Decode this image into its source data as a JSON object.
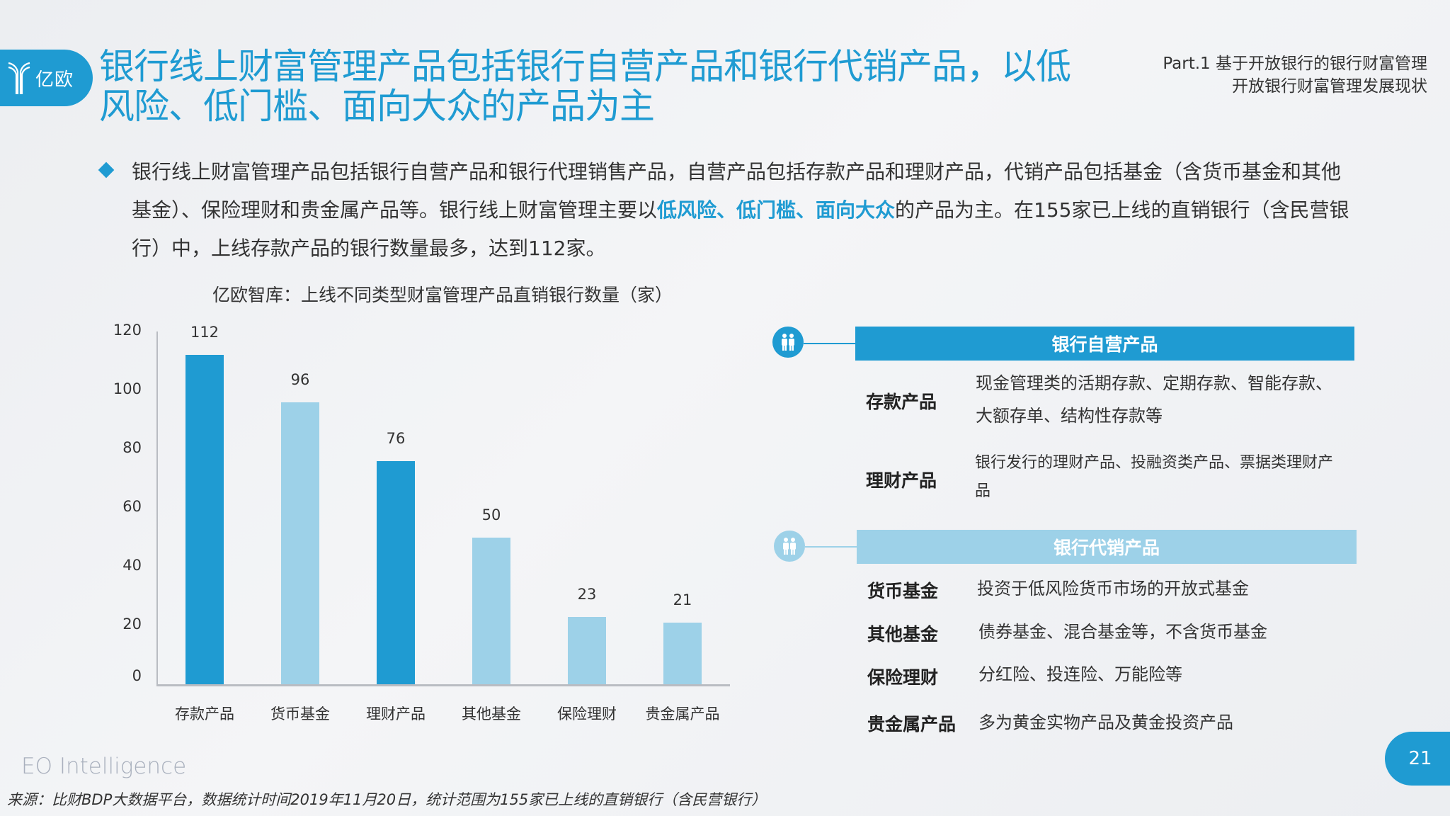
{
  "header": {
    "logo_text": "亿欧",
    "title": "银行线上财富管理产品包括银行自营产品和银行代销产品，以低风险、低门槛、面向大众的产品为主",
    "part_line1": "Part.1 基于开放银行的银行财富管理",
    "part_line2": "开放银行财富管理发展现状"
  },
  "paragraph": {
    "before": "银行线上财富管理产品包括银行自营产品和银行代理销售产品，自营产品包括存款产品和理财产品，代销产品包括基金（含货币基金和其他基金）、保险理财和贵金属产品等。银行线上财富管理主要以",
    "highlight": "低风险、低门槛、面向大众",
    "after": "的产品为主。在155家已上线的直销银行（含民营银行）中，上线存款产品的银行数量最多，达到112家。"
  },
  "colors": {
    "accent": "#1f9bd2",
    "light": "#9dd1e8",
    "axis": "#b9bcc2"
  },
  "chart_data": {
    "type": "bar",
    "title": "亿欧智库：上线不同类型财富管理产品直销银行数量（家）",
    "categories": [
      "存款产品",
      "货币基金",
      "理财产品",
      "其他基金",
      "保险理财",
      "贵金属产品"
    ],
    "values": [
      112,
      96,
      76,
      50,
      23,
      21
    ],
    "bar_colors": [
      "#1f9bd2",
      "#9dd1e8",
      "#1f9bd2",
      "#9dd1e8",
      "#9dd1e8",
      "#9dd1e8"
    ],
    "xlabel": "",
    "ylabel": "",
    "ylim": [
      0,
      120
    ],
    "yticks": [
      0,
      20,
      40,
      60,
      80,
      100,
      120
    ],
    "grid": false,
    "data_labels": true
  },
  "panel": {
    "self_operated": {
      "header": "银行自营产品",
      "items": [
        {
          "term": "存款产品",
          "desc": "现金管理类的活期存款、定期存款、智能存款、大额存单、结构性存款等"
        },
        {
          "term": "理财产品",
          "desc": "银行发行的理财产品、投融资类产品、票据类理财产品"
        }
      ]
    },
    "agency": {
      "header": "银行代销产品",
      "items": [
        {
          "term": "货币基金",
          "desc": "投资于低风险货币市场的开放式基金"
        },
        {
          "term": "其他基金",
          "desc": "债券基金、混合基金等，不含货币基金"
        },
        {
          "term": "保险理财",
          "desc": "分红险、投连险、万能险等"
        },
        {
          "term": "贵金属产品",
          "desc": "多为黄金实物产品及黄金投资产品"
        }
      ]
    }
  },
  "footer": {
    "brand": "EO Intelligence",
    "source": "来源：比财BDP大数据平台，数据统计时间2019年11月20日，统计范围为155家已上线的直销银行（含民营银行）",
    "page_number": "21"
  }
}
